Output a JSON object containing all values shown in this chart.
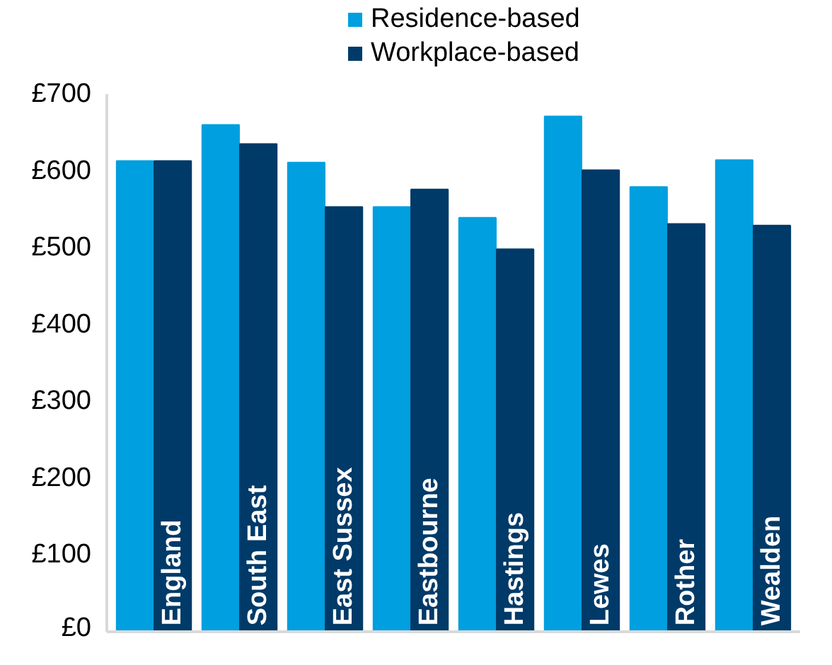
{
  "chart_data": {
    "type": "bar",
    "categories": [
      "England",
      "South East",
      "East Sussex",
      "Eastbourne",
      "Hastings",
      "Lewes",
      "Rother",
      "Wealden"
    ],
    "series": [
      {
        "name": "Residence-based",
        "color": "#009fdf",
        "values": [
          613,
          660,
          611,
          553,
          539,
          671,
          579,
          614
        ]
      },
      {
        "name": "Workplace-based",
        "color": "#003a68",
        "values": [
          613,
          635,
          553,
          576,
          498,
          601,
          531,
          529
        ]
      }
    ],
    "ylim": [
      0,
      700
    ],
    "yticks": [
      {
        "value": 0,
        "label": "£0"
      },
      {
        "value": 100,
        "label": "£100"
      },
      {
        "value": 200,
        "label": "£200"
      },
      {
        "value": 300,
        "label": "£300"
      },
      {
        "value": 400,
        "label": "£400"
      },
      {
        "value": 500,
        "label": "£500"
      },
      {
        "value": 600,
        "label": "£600"
      },
      {
        "value": 700,
        "label": "£700"
      }
    ],
    "grid": false,
    "legend": "top"
  }
}
